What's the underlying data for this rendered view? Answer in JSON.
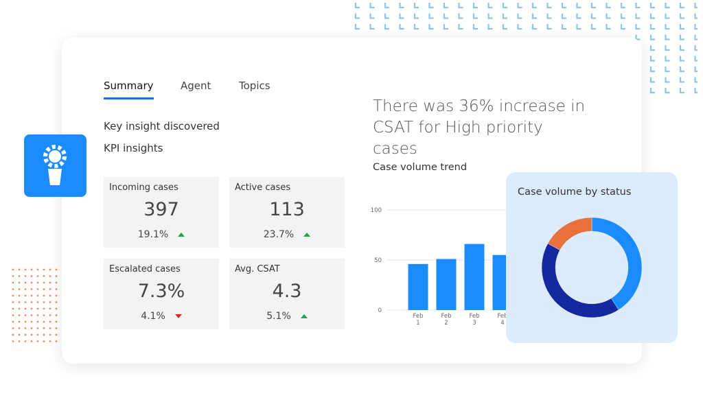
{
  "tabs": {
    "items": [
      "Summary",
      "Agent",
      "Topics"
    ],
    "active": 0
  },
  "insights": [
    "Key insight discovered",
    "KPI insights"
  ],
  "kpis": [
    {
      "label": "Incoming cases",
      "value": "397",
      "change": "19.1%",
      "trend": "up"
    },
    {
      "label": "Active cases",
      "value": "113",
      "change": "23.7%",
      "trend": "up"
    },
    {
      "label": "Escalated cases",
      "value": "7.3%",
      "change": "4.1%",
      "trend": "down"
    },
    {
      "label": "Avg. CSAT",
      "value": "4.3",
      "change": "5.1%",
      "trend": "up"
    }
  ],
  "headline": "There was 36% increase in CSAT for High priority cases",
  "chart_data": [
    {
      "type": "bar",
      "title": "Case volume trend",
      "categories": [
        "Feb 1",
        "Feb 2",
        "Feb 3",
        "Feb 4"
      ],
      "values": [
        46,
        51,
        66,
        55
      ],
      "color": "#1a8cff",
      "ylim": [
        0,
        100
      ],
      "yticks": [
        0,
        50,
        100
      ],
      "grid": true
    },
    {
      "type": "pie",
      "title": "Case volume by status",
      "values": [
        41,
        42,
        17
      ],
      "colors": [
        "#1a8cff",
        "#1428a0",
        "#e8703a"
      ],
      "donut": true
    }
  ]
}
